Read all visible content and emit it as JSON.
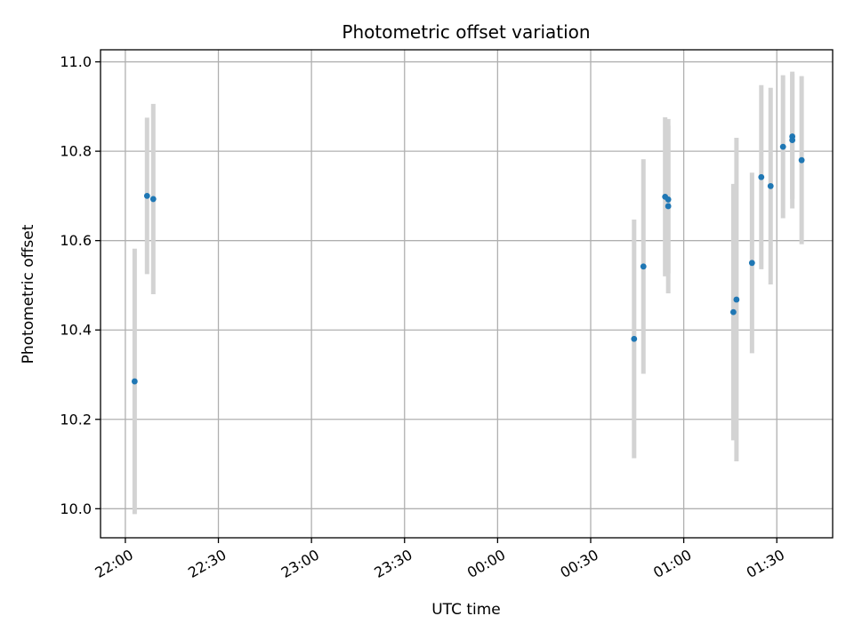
{
  "chart_data": {
    "type": "scatter",
    "title": "Photometric offset variation",
    "xlabel": "UTC time",
    "ylabel": "Photometric offset",
    "x_tick_labels": [
      "22:00",
      "22:30",
      "23:00",
      "23:30",
      "00:00",
      "00:30",
      "01:00",
      "01:30"
    ],
    "y_tick_labels": [
      "10.0",
      "10.2",
      "10.4",
      "10.6",
      "10.8",
      "11.0"
    ],
    "x_ticks_minutes": [
      0,
      30,
      60,
      90,
      120,
      150,
      180,
      210
    ],
    "x_origin_time": "22:00",
    "y_ticks": [
      10.0,
      10.2,
      10.4,
      10.6,
      10.8,
      11.0
    ],
    "xlim_minutes": [
      -8,
      228
    ],
    "ylim": [
      9.935,
      11.027
    ],
    "grid": true,
    "point_color": "#1f77b4",
    "errorbar_color": "#d3d3d3",
    "points": [
      {
        "time": "22:03",
        "y": 10.285,
        "err": 0.297
      },
      {
        "time": "22:07",
        "y": 10.7,
        "err": 0.175
      },
      {
        "time": "22:09",
        "y": 10.693,
        "err": 0.213
      },
      {
        "time": "00:44",
        "y": 10.38,
        "err": 0.267
      },
      {
        "time": "00:47",
        "y": 10.542,
        "err": 0.24
      },
      {
        "time": "00:54",
        "y": 10.698,
        "err": 0.178
      },
      {
        "time": "00:55",
        "y": 10.692,
        "err": 0.165
      },
      {
        "time": "00:55",
        "y": 10.677,
        "err": 0.195
      },
      {
        "time": "01:16",
        "y": 10.44,
        "err": 0.287
      },
      {
        "time": "01:17",
        "y": 10.468,
        "err": 0.362
      },
      {
        "time": "01:22",
        "y": 10.55,
        "err": 0.202
      },
      {
        "time": "01:25",
        "y": 10.742,
        "err": 0.206
      },
      {
        "time": "01:28",
        "y": 10.722,
        "err": 0.22
      },
      {
        "time": "01:32",
        "y": 10.81,
        "err": 0.16
      },
      {
        "time": "01:35",
        "y": 10.833,
        "err": 0.14
      },
      {
        "time": "01:35",
        "y": 10.825,
        "err": 0.153
      },
      {
        "time": "01:38",
        "y": 10.78,
        "err": 0.188
      }
    ]
  }
}
